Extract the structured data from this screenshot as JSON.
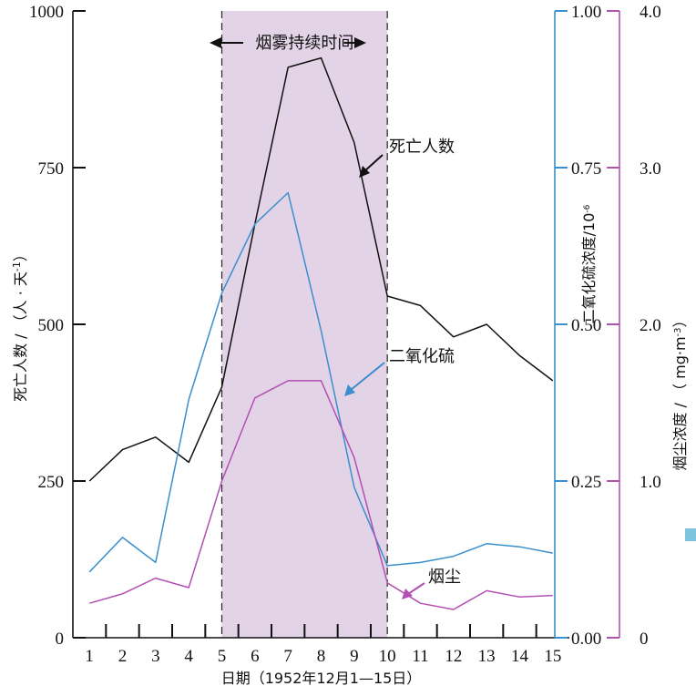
{
  "chart_data": {
    "type": "line",
    "x": [
      "1",
      "2",
      "3",
      "4",
      "5",
      "6",
      "7",
      "8",
      "9",
      "10",
      "11",
      "12",
      "13",
      "14",
      "15"
    ],
    "xlabel": "日期（1952年12月1—15日）",
    "fog_label": "烟雾持续时间",
    "fog_range": [
      4.5,
      9.5
    ],
    "axes": {
      "deaths": {
        "label": "死亡人数 / （人 · 天",
        "label_sup": "-1",
        "label_end": "）",
        "ylim": [
          0,
          1000
        ],
        "ticks": [
          "0",
          "250",
          "500",
          "750",
          "1000"
        ],
        "color": "#111111"
      },
      "so2": {
        "label": "二氧化硫浓度/10",
        "label_sup": "-6",
        "ylim": [
          0,
          1.0
        ],
        "ticks": [
          "0.00",
          "0.25",
          "0.50",
          "0.75",
          "1.00"
        ],
        "color": "#3a8fcc"
      },
      "smoke": {
        "label": "烟尘浓度 / （ mg·m",
        "label_sup": "-3",
        "label_end": "）",
        "ylim": [
          0,
          4.0
        ],
        "ticks": [
          "0",
          "1.0",
          "2.0",
          "3.0",
          "4.0"
        ],
        "color": "#b250b3"
      }
    },
    "series": [
      {
        "name": "死亡人数",
        "axis": "deaths",
        "color": "#111111",
        "x": [
          0.5,
          1.5,
          2.5,
          3.5,
          4.5,
          5.5,
          6.5,
          7.5,
          8.5,
          9.5,
          10.5,
          11.5,
          12.5,
          13.5,
          14.5
        ],
        "values": [
          250,
          300,
          320,
          280,
          400,
          660,
          910,
          925,
          790,
          545,
          530,
          480,
          500,
          450,
          410
        ]
      },
      {
        "name": "二氧化硫",
        "axis": "so2",
        "color": "#3a8fcc",
        "x": [
          0.5,
          1.5,
          2.5,
          3.5,
          4.5,
          5.5,
          6.5,
          7.5,
          8.5,
          9.5,
          10.5,
          11.5,
          12.5,
          13.5,
          14.5
        ],
        "values": [
          0.105,
          0.16,
          0.12,
          0.38,
          0.55,
          0.66,
          0.71,
          0.49,
          0.24,
          0.115,
          0.12,
          0.13,
          0.15,
          0.145,
          0.135
        ]
      },
      {
        "name": "烟尘",
        "axis": "smoke",
        "color": "#b250b3",
        "x": [
          0.5,
          1.5,
          2.5,
          3.5,
          4.5,
          5.5,
          6.5,
          7.5,
          8.5,
          9.5,
          10.5,
          11.5,
          12.5,
          13.5,
          14.5
        ],
        "values": [
          0.22,
          0.28,
          0.38,
          0.32,
          1.0,
          1.53,
          1.64,
          1.64,
          1.15,
          0.35,
          0.22,
          0.18,
          0.3,
          0.26,
          0.27
        ]
      }
    ],
    "annotations": [
      {
        "text": "死亡人数",
        "series": "死亡人数"
      },
      {
        "text": "二氧化硫",
        "series": "二氧化硫"
      },
      {
        "text": "烟尘",
        "series": "烟尘"
      }
    ],
    "legend": "none",
    "grid": false
  }
}
